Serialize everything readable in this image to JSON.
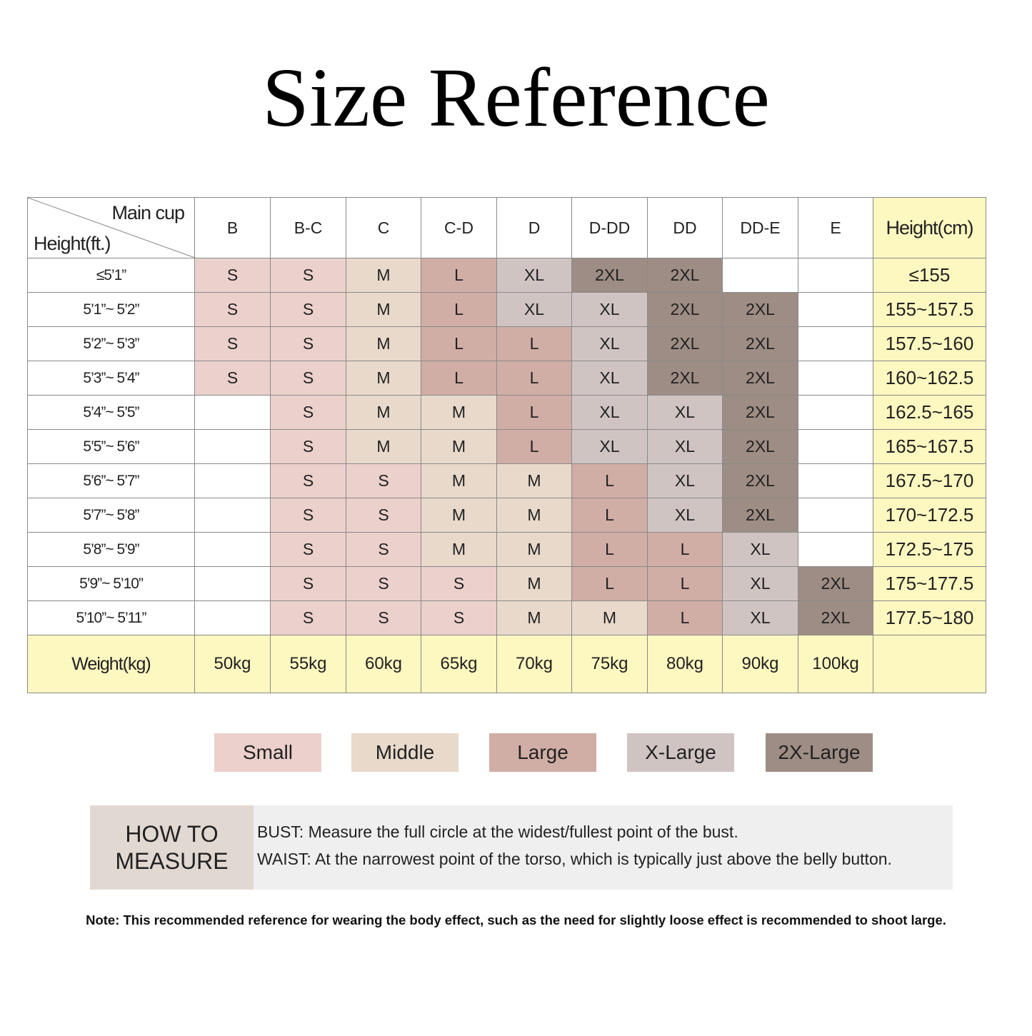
{
  "title": "Size Reference",
  "table": {
    "corner_top": "Main cup",
    "corner_bottom": "Height(ft.)",
    "cups": [
      "B",
      "B-C",
      "C",
      "C-D",
      "D",
      "D-DD",
      "DD",
      "DD-E",
      "E"
    ],
    "height_cm_header": "Height(cm)",
    "rows": [
      {
        "ft": "≤5’1”",
        "sizes": [
          "S",
          "S",
          "M",
          "L",
          "XL",
          "2XL",
          "2XL",
          "",
          ""
        ],
        "cm": "≤155"
      },
      {
        "ft": "5’1”~ 5’2”",
        "sizes": [
          "S",
          "S",
          "M",
          "L",
          "XL",
          "XL",
          "2XL",
          "2XL",
          ""
        ],
        "cm": "155~157.5"
      },
      {
        "ft": "5’2”~ 5’3”",
        "sizes": [
          "S",
          "S",
          "M",
          "L",
          "L",
          "XL",
          "2XL",
          "2XL",
          ""
        ],
        "cm": "157.5~160"
      },
      {
        "ft": "5’3”~ 5’4”",
        "sizes": [
          "S",
          "S",
          "M",
          "L",
          "L",
          "XL",
          "2XL",
          "2XL",
          ""
        ],
        "cm": "160~162.5"
      },
      {
        "ft": "5’4”~ 5’5”",
        "sizes": [
          "",
          "S",
          "M",
          "M",
          "L",
          "XL",
          "XL",
          "2XL",
          ""
        ],
        "cm": "162.5~165"
      },
      {
        "ft": "5’5”~ 5’6”",
        "sizes": [
          "",
          "S",
          "M",
          "M",
          "L",
          "XL",
          "XL",
          "2XL",
          ""
        ],
        "cm": "165~167.5"
      },
      {
        "ft": "5’6”~ 5’7”",
        "sizes": [
          "",
          "S",
          "S",
          "M",
          "M",
          "L",
          "XL",
          "2XL",
          ""
        ],
        "cm": "167.5~170"
      },
      {
        "ft": "5’7”~ 5’8”",
        "sizes": [
          "",
          "S",
          "S",
          "M",
          "M",
          "L",
          "XL",
          "2XL",
          ""
        ],
        "cm": "170~172.5"
      },
      {
        "ft": "5’8”~ 5’9”",
        "sizes": [
          "",
          "S",
          "S",
          "M",
          "M",
          "L",
          "L",
          "XL",
          ""
        ],
        "cm": "172.5~175"
      },
      {
        "ft": "5’9”~ 5’10”",
        "sizes": [
          "",
          "S",
          "S",
          "S",
          "M",
          "L",
          "L",
          "XL",
          "2XL"
        ],
        "cm": "175~177.5"
      },
      {
        "ft": "5’10”~ 5’11”",
        "sizes": [
          "",
          "S",
          "S",
          "S",
          "M",
          "M",
          "L",
          "XL",
          "2XL"
        ],
        "cm": "177.5~180"
      }
    ],
    "weight_label": "Weight(kg)",
    "weights": [
      "50kg",
      "55kg",
      "60kg",
      "65kg",
      "70kg",
      "75kg",
      "80kg",
      "90kg",
      "100kg"
    ]
  },
  "legend": [
    {
      "label": "Small",
      "code": "S",
      "color": "#ebd0cc"
    },
    {
      "label": "Middle",
      "code": "M",
      "color": "#e8d9cb"
    },
    {
      "label": "Large",
      "code": "L",
      "color": "#d0ada5"
    },
    {
      "label": "X-Large",
      "code": "XL",
      "color": "#d0c4c3"
    },
    {
      "label": "2X-Large",
      "code": "2XL",
      "color": "#9e8d84"
    }
  ],
  "how_to_measure": {
    "label_line1": "HOW TO",
    "label_line2": "MEASURE",
    "bust": "BUST: Measure the full circle at the widest/fullest point of the bust.",
    "waist": "WAIST: At the narrowest point of the torso, which is typically just above the belly button."
  },
  "note": "Note: This recommended reference for wearing the body effect, such as the need for slightly loose effect is recommended to shoot large."
}
